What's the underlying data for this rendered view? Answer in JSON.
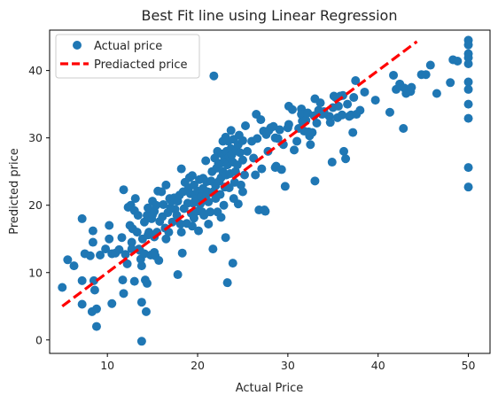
{
  "chart_data": {
    "type": "scatter",
    "title": "Best Fit line using Linear Regression",
    "xlabel": "Actual Price",
    "ylabel": "Predicted price",
    "xlim": [
      3.6,
      52.4
    ],
    "ylim": [
      -2.0,
      46.0
    ],
    "xticks": [
      10,
      20,
      30,
      40,
      50
    ],
    "yticks": [
      0,
      10,
      20,
      30,
      40
    ],
    "grid": false,
    "legend_position": "top-left",
    "colors": {
      "scatter": "#1f77b4",
      "line": "#ff0000"
    },
    "series": [
      {
        "name": "Actual price",
        "kind": "scatter",
        "points": [
          [
            5.0,
            7.8
          ],
          [
            5.6,
            11.9
          ],
          [
            6.3,
            11.0
          ],
          [
            7.2,
            18.0
          ],
          [
            7.2,
            8.8
          ],
          [
            7.2,
            5.3
          ],
          [
            7.5,
            12.8
          ],
          [
            8.1,
            12.5
          ],
          [
            8.3,
            4.2
          ],
          [
            8.4,
            14.5
          ],
          [
            8.4,
            16.2
          ],
          [
            8.5,
            8.8
          ],
          [
            8.6,
            7.4
          ],
          [
            8.8,
            4.6
          ],
          [
            8.8,
            2.0
          ],
          [
            9.2,
            12.6
          ],
          [
            9.8,
            13.5
          ],
          [
            10.2,
            17.0
          ],
          [
            10.2,
            15.0
          ],
          [
            10.5,
            12.8
          ],
          [
            10.5,
            5.4
          ],
          [
            10.9,
            12.9
          ],
          [
            11.3,
            13.4
          ],
          [
            11.6,
            15.2
          ],
          [
            11.7,
            8.9
          ],
          [
            11.8,
            6.9
          ],
          [
            11.8,
            22.3
          ],
          [
            12.0,
            12.7
          ],
          [
            12.2,
            11.3
          ],
          [
            12.3,
            19.7
          ],
          [
            12.5,
            17.0
          ],
          [
            12.6,
            20.0
          ],
          [
            12.7,
            14.5
          ],
          [
            12.7,
            13.5
          ],
          [
            12.8,
            16.5
          ],
          [
            13.0,
            19.2
          ],
          [
            13.0,
            8.7
          ],
          [
            13.1,
            21.0
          ],
          [
            13.3,
            16.0
          ],
          [
            13.4,
            18.5
          ],
          [
            13.5,
            13.5
          ],
          [
            13.6,
            13.3
          ],
          [
            13.7,
            12.0
          ],
          [
            13.8,
            11.0
          ],
          [
            13.8,
            5.6
          ],
          [
            13.8,
            -0.2
          ],
          [
            13.9,
            15.0
          ],
          [
            14.1,
            17.5
          ],
          [
            14.1,
            12.8
          ],
          [
            14.2,
            8.9
          ],
          [
            14.3,
            4.2
          ],
          [
            14.4,
            18.5
          ],
          [
            14.4,
            8.4
          ],
          [
            14.5,
            19.6
          ],
          [
            14.5,
            15.6
          ],
          [
            14.6,
            16.0
          ],
          [
            14.8,
            12.6
          ],
          [
            14.9,
            18.0
          ],
          [
            15.0,
            20.6
          ],
          [
            15.0,
            18.6
          ],
          [
            15.2,
            19.1
          ],
          [
            15.2,
            15.3
          ],
          [
            15.2,
            13.0
          ],
          [
            15.3,
            12.5
          ],
          [
            15.4,
            20.0
          ],
          [
            15.5,
            16.0
          ],
          [
            15.6,
            22.1
          ],
          [
            15.7,
            11.8
          ],
          [
            15.8,
            17.6
          ],
          [
            16.0,
            22.0
          ],
          [
            16.1,
            18.3
          ],
          [
            16.2,
            20.1
          ],
          [
            16.4,
            16.6
          ],
          [
            16.5,
            23.0
          ],
          [
            16.5,
            15.0
          ],
          [
            16.7,
            18.9
          ],
          [
            16.8,
            16.0
          ],
          [
            16.9,
            21.0
          ],
          [
            17.0,
            19.6
          ],
          [
            17.1,
            20.6
          ],
          [
            17.2,
            17.5
          ],
          [
            17.4,
            21.1
          ],
          [
            17.5,
            19.4
          ],
          [
            17.7,
            18.5
          ],
          [
            17.8,
            20.6
          ],
          [
            17.8,
            9.7
          ],
          [
            18.0,
            21.5
          ],
          [
            18.1,
            17.2
          ],
          [
            18.2,
            16.0
          ],
          [
            18.2,
            25.4
          ],
          [
            18.3,
            12.9
          ],
          [
            18.4,
            22.0
          ],
          [
            18.5,
            19.5
          ],
          [
            18.6,
            23.4
          ],
          [
            18.8,
            17.3
          ],
          [
            18.9,
            20.3
          ],
          [
            19.0,
            22.6
          ],
          [
            19.1,
            24.1
          ],
          [
            19.2,
            21.7
          ],
          [
            19.3,
            18.8
          ],
          [
            19.4,
            16.9
          ],
          [
            19.4,
            24.4
          ],
          [
            19.5,
            20.3
          ],
          [
            19.6,
            23.0
          ],
          [
            19.6,
            18.1
          ],
          [
            19.8,
            21.0
          ],
          [
            19.9,
            19.1
          ],
          [
            20.0,
            22.1
          ],
          [
            20.1,
            16.2
          ],
          [
            20.2,
            23.8
          ],
          [
            20.3,
            20.2
          ],
          [
            20.4,
            21.3
          ],
          [
            20.5,
            19.0
          ],
          [
            20.6,
            24.0
          ],
          [
            20.6,
            22.5
          ],
          [
            20.7,
            18.5
          ],
          [
            20.8,
            20.9
          ],
          [
            20.9,
            26.6
          ],
          [
            21.0,
            23.5
          ],
          [
            21.0,
            21.6
          ],
          [
            21.1,
            22.0
          ],
          [
            21.2,
            20.5
          ],
          [
            21.2,
            17.2
          ],
          [
            21.4,
            19.0
          ],
          [
            21.5,
            23.6
          ],
          [
            21.6,
            25.0
          ],
          [
            21.7,
            22.0
          ],
          [
            21.7,
            13.5
          ],
          [
            21.8,
            39.2
          ],
          [
            21.9,
            27.0
          ],
          [
            22.0,
            22.9
          ],
          [
            22.0,
            21.0
          ],
          [
            22.1,
            25.5
          ],
          [
            22.2,
            28.0
          ],
          [
            22.2,
            19.0
          ],
          [
            22.3,
            26.2
          ],
          [
            22.4,
            23.6
          ],
          [
            22.5,
            21.6
          ],
          [
            22.5,
            26.2
          ],
          [
            22.6,
            18.2
          ],
          [
            22.6,
            24.1
          ],
          [
            22.7,
            27.6
          ],
          [
            22.8,
            29.5
          ],
          [
            22.8,
            25.0
          ],
          [
            22.9,
            20.0
          ],
          [
            23.0,
            26.8
          ],
          [
            23.0,
            22.7
          ],
          [
            23.1,
            30.1
          ],
          [
            23.1,
            15.2
          ],
          [
            23.2,
            28.0
          ],
          [
            23.2,
            24.5
          ],
          [
            23.3,
            8.5
          ],
          [
            23.3,
            26.0
          ],
          [
            23.4,
            29.5
          ],
          [
            23.5,
            22.6
          ],
          [
            23.5,
            27.2
          ],
          [
            23.6,
            24.7
          ],
          [
            23.7,
            31.1
          ],
          [
            23.7,
            28.4
          ],
          [
            23.8,
            27.5
          ],
          [
            23.9,
            26.4
          ],
          [
            23.9,
            11.4
          ],
          [
            24.0,
            29.8
          ],
          [
            24.0,
            21.0
          ],
          [
            24.1,
            23.4
          ],
          [
            24.2,
            25.0
          ],
          [
            24.3,
            28.1
          ],
          [
            24.4,
            26.0
          ],
          [
            24.5,
            29.0
          ],
          [
            24.5,
            20.2
          ],
          [
            24.6,
            30.4
          ],
          [
            24.7,
            27.8
          ],
          [
            24.8,
            23.0
          ],
          [
            25.0,
            29.6
          ],
          [
            25.0,
            26.7
          ],
          [
            25.0,
            22.0
          ],
          [
            25.2,
            24.5
          ],
          [
            25.3,
            31.8
          ],
          [
            25.5,
            28.0
          ],
          [
            26.0,
            29.5
          ],
          [
            26.2,
            27.0
          ],
          [
            26.4,
            24.5
          ],
          [
            26.5,
            33.5
          ],
          [
            26.6,
            29.9
          ],
          [
            26.8,
            19.3
          ],
          [
            27.0,
            32.7
          ],
          [
            27.1,
            25.4
          ],
          [
            27.3,
            31.0
          ],
          [
            27.4,
            19.3
          ],
          [
            27.5,
            19.1
          ],
          [
            27.6,
            30.5
          ],
          [
            27.8,
            28.0
          ],
          [
            27.9,
            31.1
          ],
          [
            28.1,
            31.5
          ],
          [
            28.4,
            31.7
          ],
          [
            28.6,
            25.6
          ],
          [
            28.6,
            30.0
          ],
          [
            28.7,
            25.8
          ],
          [
            28.9,
            29.9
          ],
          [
            29.1,
            31.2
          ],
          [
            29.3,
            25.3
          ],
          [
            29.5,
            29.0
          ],
          [
            29.7,
            22.8
          ],
          [
            30.0,
            31.5
          ],
          [
            30.1,
            34.7
          ],
          [
            30.1,
            32.0
          ],
          [
            30.5,
            34.2
          ],
          [
            30.7,
            28.2
          ],
          [
            31.0,
            29.5
          ],
          [
            31.2,
            31.4
          ],
          [
            31.5,
            34.3
          ],
          [
            31.5,
            33.5
          ],
          [
            31.6,
            32.5
          ],
          [
            31.8,
            31.0
          ],
          [
            32.0,
            32.6
          ],
          [
            32.2,
            33.7
          ],
          [
            32.3,
            30.9
          ],
          [
            32.4,
            30.3
          ],
          [
            32.5,
            29.0
          ],
          [
            32.7,
            30.8
          ],
          [
            32.9,
            33.3
          ],
          [
            33.0,
            23.6
          ],
          [
            33.0,
            35.8
          ],
          [
            33.2,
            32.2
          ],
          [
            33.4,
            34.1
          ],
          [
            33.6,
            35.2
          ],
          [
            33.8,
            33.5
          ],
          [
            34.0,
            33.9
          ],
          [
            34.6,
            33.2
          ],
          [
            34.7,
            32.3
          ],
          [
            34.9,
            26.4
          ],
          [
            35.0,
            34.5
          ],
          [
            35.1,
            36.2
          ],
          [
            35.3,
            36.0
          ],
          [
            35.5,
            33.0
          ],
          [
            35.6,
            34.7
          ],
          [
            35.8,
            36.2
          ],
          [
            36.0,
            33.4
          ],
          [
            36.1,
            36.3
          ],
          [
            36.2,
            28.0
          ],
          [
            36.4,
            26.9
          ],
          [
            36.6,
            35.0
          ],
          [
            36.8,
            33.2
          ],
          [
            37.0,
            33.4
          ],
          [
            37.2,
            30.8
          ],
          [
            37.3,
            36.0
          ],
          [
            37.5,
            38.5
          ],
          [
            37.6,
            33.5
          ],
          [
            38.0,
            34.1
          ],
          [
            38.5,
            36.8
          ],
          [
            39.7,
            35.6
          ],
          [
            41.3,
            33.8
          ],
          [
            41.7,
            39.3
          ],
          [
            42.0,
            37.2
          ],
          [
            42.4,
            38.0
          ],
          [
            42.8,
            31.4
          ],
          [
            42.9,
            37.4
          ],
          [
            43.1,
            36.6
          ],
          [
            43.6,
            36.9
          ],
          [
            43.7,
            37.5
          ],
          [
            44.8,
            39.4
          ],
          [
            45.3,
            39.4
          ],
          [
            45.8,
            40.8
          ],
          [
            46.5,
            36.6
          ],
          [
            48.0,
            38.2
          ],
          [
            48.3,
            41.6
          ],
          [
            48.8,
            41.4
          ],
          [
            50.0,
            44.5
          ],
          [
            50.0,
            43.8
          ],
          [
            50.0,
            42.5
          ],
          [
            50.0,
            41.9
          ],
          [
            50.0,
            41.0
          ],
          [
            50.0,
            38.3
          ],
          [
            50.0,
            37.2
          ],
          [
            50.0,
            35.0
          ],
          [
            50.0,
            32.9
          ],
          [
            50.0,
            25.6
          ],
          [
            50.0,
            22.7
          ]
        ]
      },
      {
        "name": "Prediacted price",
        "kind": "line",
        "style": "dashed",
        "x": [
          5.0,
          44.3
        ],
        "y": [
          5.0,
          44.3
        ]
      }
    ]
  }
}
